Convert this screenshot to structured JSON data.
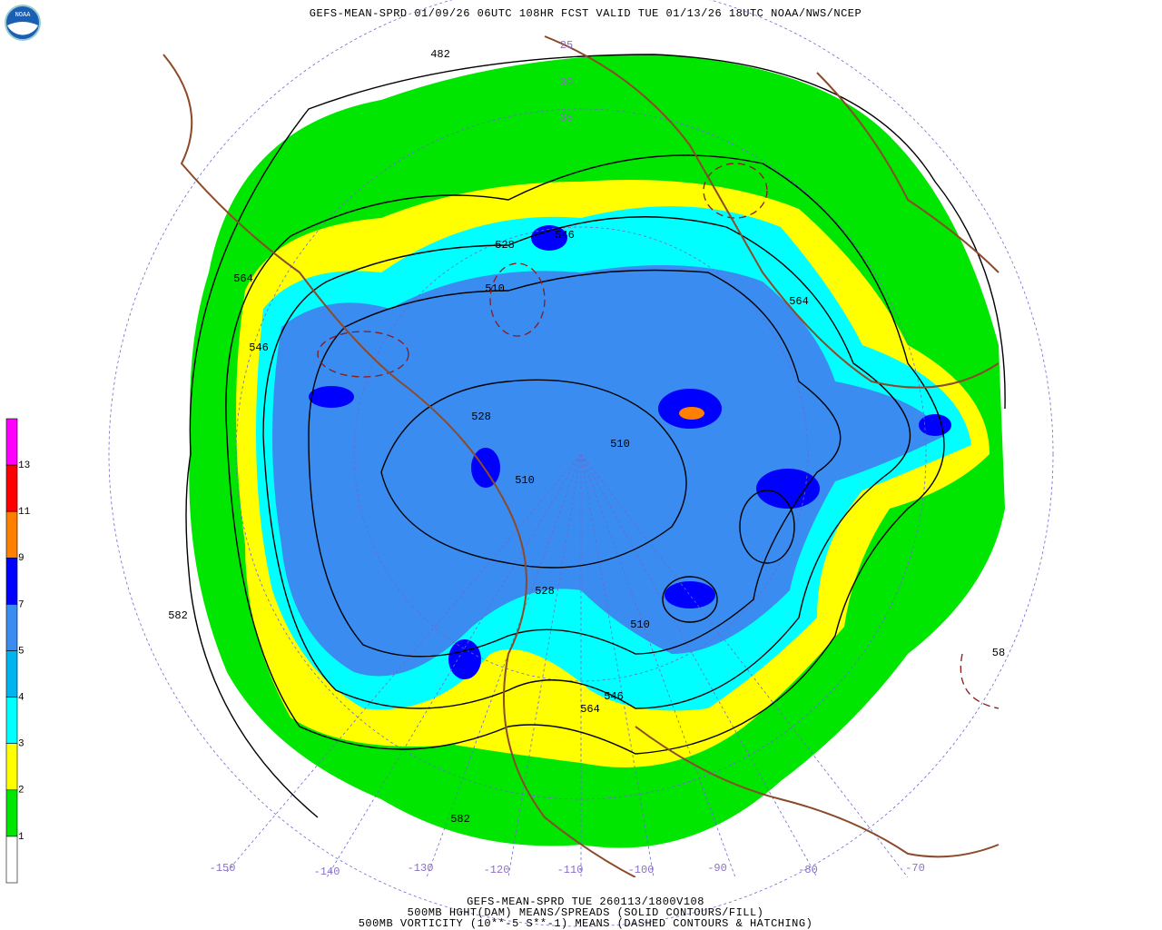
{
  "header": {
    "logo": "NOAA",
    "title": "GEFS-MEAN-SPRD 01/09/26 06UTC 108HR FCST VALID TUE 01/13/26 18UTC NOAA/NWS/NCEP"
  },
  "legend": {
    "levels": [
      {
        "label": 13,
        "color": "#ff00ff"
      },
      {
        "label": 11,
        "color": "#ff0000"
      },
      {
        "label": 9,
        "color": "#ff7f00"
      },
      {
        "label": 7,
        "color": "#0000ff"
      },
      {
        "label": 5,
        "color": "#3a8cf0"
      },
      {
        "label": 4,
        "color": "#00b4f0"
      },
      {
        "label": 3,
        "color": "#00ffff"
      },
      {
        "label": 2,
        "color": "#ffff00"
      },
      {
        "label": 1,
        "color": "#00e600"
      }
    ],
    "base_color": "#ffffff"
  },
  "map": {
    "contour_labels": [
      "482",
      "564",
      "546",
      "528",
      "510",
      "546",
      "528",
      "510",
      "510",
      "564",
      "582",
      "528",
      "510",
      "546",
      "564",
      "582",
      "58"
    ],
    "latitude_labels": [
      "25",
      "30",
      "35"
    ],
    "longitude_labels": [
      "-150",
      "-140",
      "-130",
      "-120",
      "-110",
      "-100",
      "-90",
      "-80",
      "-70"
    ]
  },
  "footer": {
    "lines": [
      "GEFS-MEAN-SPRD TUE 260113/1800V108",
      "500MB HGHT(DAM) MEANS/SPREADS (SOLID CONTOURS/FILL)",
      "500MB VORTICITY (10**-5 S**-1) MEANS (DASHED CONTOURS & HATCHING)"
    ]
  }
}
